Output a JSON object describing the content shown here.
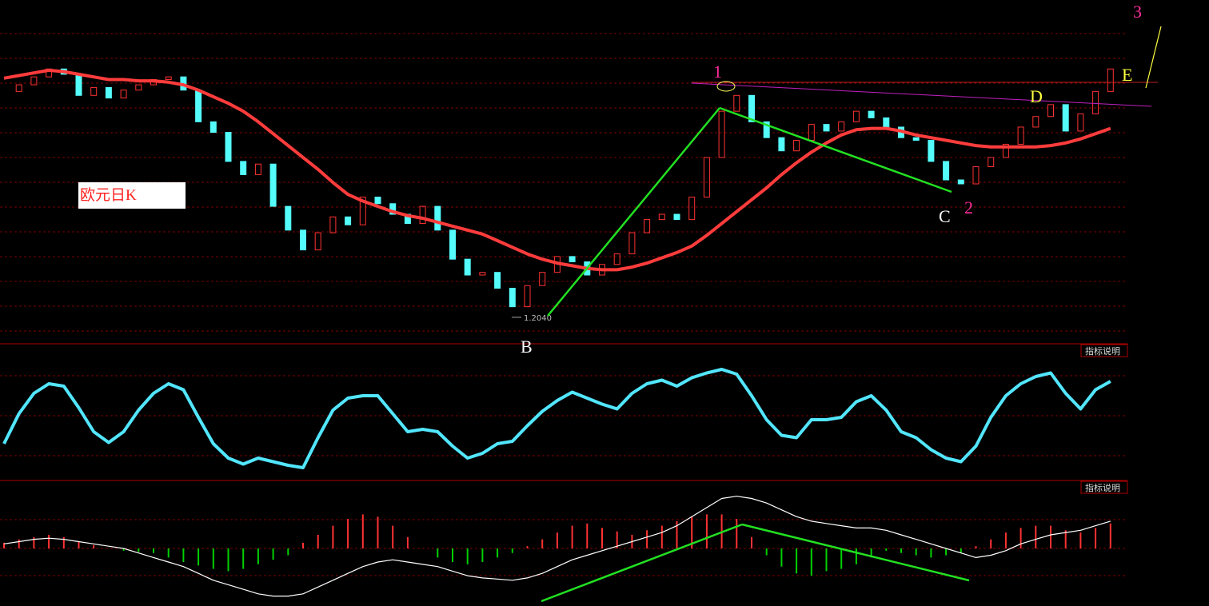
{
  "chart_data": [
    {
      "type": "candlestick",
      "title": "欧元日K",
      "ylim": [
        1.19,
        1.42
      ],
      "up_color": "#ff3232",
      "down_color": "#54fcfc",
      "close": [
        1.375,
        1.38,
        1.386,
        1.392,
        1.388,
        1.372,
        1.378,
        1.37,
        1.376,
        1.38,
        1.384,
        1.386,
        1.376,
        1.352,
        1.344,
        1.322,
        1.312,
        1.32,
        1.288,
        1.27,
        1.255,
        1.268,
        1.28,
        1.274,
        1.295,
        1.29,
        1.282,
        1.275,
        1.288,
        1.27,
        1.248,
        1.236,
        1.238,
        1.226,
        1.212,
        1.228,
        1.238,
        1.25,
        1.246,
        1.236,
        1.244,
        1.252,
        1.268,
        1.278,
        1.282,
        1.278,
        1.295,
        1.325,
        1.36,
        1.372,
        1.352,
        1.34,
        1.33,
        1.338,
        1.35,
        1.345,
        1.352,
        1.36,
        1.355,
        1.348,
        1.34,
        1.338,
        1.322,
        1.308,
        1.305,
        1.318,
        1.325,
        1.335,
        1.348,
        1.356,
        1.365,
        1.345,
        1.358,
        1.375,
        1.392
      ],
      "ma": {
        "color": "#ff3c3c",
        "values": [
          1.385,
          1.387,
          1.389,
          1.391,
          1.39,
          1.388,
          1.386,
          1.384,
          1.384,
          1.383,
          1.383,
          1.382,
          1.38,
          1.376,
          1.371,
          1.366,
          1.36,
          1.352,
          1.343,
          1.334,
          1.325,
          1.316,
          1.306,
          1.297,
          1.292,
          1.288,
          1.284,
          1.281,
          1.279,
          1.276,
          1.273,
          1.27,
          1.267,
          1.262,
          1.257,
          1.252,
          1.248,
          1.245,
          1.243,
          1.241,
          1.24,
          1.24,
          1.242,
          1.245,
          1.249,
          1.253,
          1.258,
          1.266,
          1.275,
          1.284,
          1.293,
          1.302,
          1.312,
          1.321,
          1.329,
          1.336,
          1.342,
          1.346,
          1.347,
          1.347,
          1.345,
          1.342,
          1.34,
          1.338,
          1.336,
          1.334,
          1.333,
          1.333,
          1.333,
          1.333,
          1.334,
          1.336,
          1.339,
          1.343,
          1.347
        ]
      },
      "low_marker": {
        "value": 1.204,
        "label": "1.2040"
      },
      "annotations": [
        "1",
        "2",
        "3",
        "B",
        "C",
        "D",
        "E"
      ]
    },
    {
      "type": "line",
      "indicator_label": "指标说明",
      "ylim": [
        0,
        100
      ],
      "color": "#52e6ff",
      "values": [
        30,
        55,
        72,
        80,
        78,
        60,
        40,
        31,
        40,
        58,
        72,
        80,
        75,
        52,
        30,
        18,
        13,
        18,
        15,
        12,
        10,
        35,
        58,
        68,
        70,
        70,
        55,
        40,
        42,
        40,
        28,
        18,
        22,
        30,
        32,
        45,
        57,
        66,
        73,
        68,
        63,
        59,
        72,
        80,
        83,
        78,
        85,
        89,
        92,
        88,
        70,
        50,
        37,
        35,
        50,
        50,
        52,
        65,
        70,
        58,
        40,
        35,
        25,
        18,
        15,
        28,
        52,
        70,
        80,
        86,
        89,
        72,
        59,
        75,
        82
      ]
    },
    {
      "type": "macd",
      "indicator_label": "指标说明",
      "ylim": [
        -50,
        50
      ],
      "up_color": "#ff3232",
      "down_color": "#00d000",
      "line_color": "#ffffff",
      "histogram": [
        5,
        8,
        10,
        12,
        10,
        6,
        3,
        0,
        -2,
        -3,
        -4,
        -8,
        -12,
        -15,
        -18,
        -20,
        -18,
        -14,
        -10,
        -6,
        5,
        12,
        20,
        26,
        30,
        28,
        20,
        10,
        0,
        -8,
        -12,
        -14,
        -12,
        -8,
        -4,
        2,
        8,
        14,
        20,
        22,
        18,
        15,
        12,
        16,
        20,
        24,
        28,
        30,
        30,
        26,
        10,
        -6,
        -16,
        -22,
        -24,
        -20,
        -18,
        -14,
        -8,
        -2,
        -4,
        -6,
        -8,
        -6,
        -4,
        2,
        8,
        14,
        18,
        20,
        20,
        16,
        14,
        18,
        22
      ],
      "line": [
        4,
        6,
        8,
        9,
        8,
        6,
        4,
        2,
        0,
        -4,
        -8,
        -12,
        -16,
        -22,
        -28,
        -32,
        -36,
        -40,
        -42,
        -42,
        -40,
        -34,
        -28,
        -22,
        -16,
        -12,
        -10,
        -12,
        -14,
        -16,
        -20,
        -24,
        -26,
        -27,
        -28,
        -26,
        -22,
        -16,
        -10,
        -6,
        -2,
        2,
        6,
        10,
        14,
        20,
        28,
        36,
        44,
        46,
        44,
        40,
        34,
        28,
        24,
        22,
        20,
        18,
        18,
        16,
        12,
        8,
        4,
        0,
        -4,
        -8,
        -6,
        -2,
        4,
        8,
        12,
        14,
        16,
        20,
        24
      ]
    }
  ]
}
